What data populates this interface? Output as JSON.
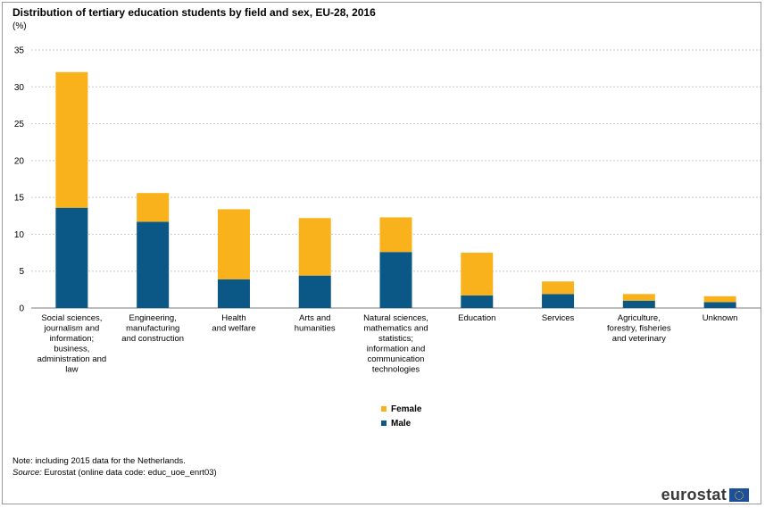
{
  "title": "Distribution of tertiary education students by field and sex, EU-28, 2016",
  "unit": "(%)",
  "note": "Note: including 2015 data for the Netherlands.",
  "source_label": "Source:",
  "source_text": " Eurostat (online data code: educ_uoe_enrt03)",
  "logo_text": "eurostat",
  "colors": {
    "female": "#f9b21b",
    "male": "#0b5786",
    "grid": "#c8c8c8",
    "axis": "#7a7a7a"
  },
  "chart_data": {
    "type": "bar",
    "stacked": true,
    "categories": [
      [
        "Social sciences,",
        "journalism and",
        "information;",
        "business,",
        "administration and",
        "law"
      ],
      [
        "Engineering,",
        "manufacturing",
        "and construction"
      ],
      [
        "Health",
        "and welfare"
      ],
      [
        "Arts and",
        "humanities"
      ],
      [
        "Natural sciences,",
        "mathematics and",
        "statistics;",
        "information and",
        "communication",
        "technologies"
      ],
      [
        "Education"
      ],
      [
        "Services"
      ],
      [
        "Agriculture,",
        "forestry, fisheries",
        "and veterinary"
      ],
      [
        "Unknown"
      ]
    ],
    "series": [
      {
        "name": "Male",
        "values": [
          13.6,
          11.7,
          3.9,
          4.4,
          7.6,
          1.7,
          1.9,
          1.0,
          0.8
        ]
      },
      {
        "name": "Female",
        "values": [
          18.4,
          3.9,
          9.5,
          7.8,
          4.7,
          5.8,
          1.7,
          0.9,
          0.8
        ]
      }
    ],
    "legend_order": [
      "Female",
      "Male"
    ],
    "ylim": [
      0,
      35
    ],
    "yticks": [
      0,
      5,
      10,
      15,
      20,
      25,
      30,
      35
    ],
    "grid": true,
    "legend_position": "bottom-center"
  }
}
